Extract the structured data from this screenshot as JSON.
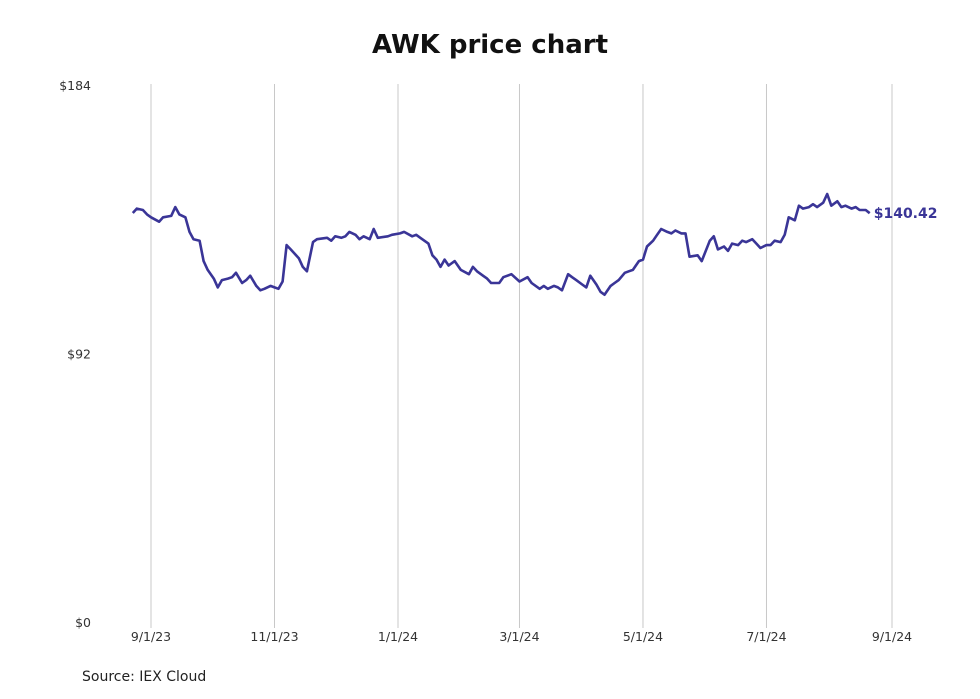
{
  "chart_data": {
    "type": "line",
    "title": "AWK price chart",
    "source": "Source: IEX Cloud",
    "xlabel": "",
    "ylabel": "",
    "x_ticks": [
      "9/1/23",
      "11/1/23",
      "1/1/24",
      "3/1/24",
      "5/1/24",
      "7/1/24",
      "9/1/24"
    ],
    "y_ticks": [
      "$0",
      "$92",
      "$184"
    ],
    "ylim": [
      0,
      184
    ],
    "xlim": [
      "2023-08-23",
      "2024-09-01"
    ],
    "grid": "vertical",
    "end_label": "$140.42",
    "line_color": "#3a3597",
    "series": [
      {
        "points": [
          [
            "2023-08-23",
            140.5
          ],
          [
            "2023-08-25",
            142.0
          ],
          [
            "2023-08-28",
            141.5
          ],
          [
            "2023-08-30",
            140.0
          ],
          [
            "2023-09-01",
            139.0
          ],
          [
            "2023-09-05",
            137.5
          ],
          [
            "2023-09-07",
            139.0
          ],
          [
            "2023-09-11",
            139.5
          ],
          [
            "2023-09-13",
            142.5
          ],
          [
            "2023-09-15",
            140.0
          ],
          [
            "2023-09-18",
            139.0
          ],
          [
            "2023-09-20",
            134.0
          ],
          [
            "2023-09-22",
            131.5
          ],
          [
            "2023-09-25",
            131.0
          ],
          [
            "2023-09-27",
            124.0
          ],
          [
            "2023-09-29",
            121.0
          ],
          [
            "2023-10-02",
            118.0
          ],
          [
            "2023-10-04",
            115.0
          ],
          [
            "2023-10-06",
            117.5
          ],
          [
            "2023-10-09",
            118.0
          ],
          [
            "2023-10-11",
            118.5
          ],
          [
            "2023-10-13",
            120.0
          ],
          [
            "2023-10-16",
            116.5
          ],
          [
            "2023-10-18",
            117.5
          ],
          [
            "2023-10-20",
            119.0
          ],
          [
            "2023-10-23",
            115.5
          ],
          [
            "2023-10-25",
            114.0
          ],
          [
            "2023-10-27",
            114.5
          ],
          [
            "2023-10-30",
            115.5
          ],
          [
            "2023-11-01",
            115.0
          ],
          [
            "2023-11-03",
            114.5
          ],
          [
            "2023-11-05",
            117.0
          ],
          [
            "2023-11-07",
            129.5
          ],
          [
            "2023-11-09",
            128.0
          ],
          [
            "2023-11-13",
            125.0
          ],
          [
            "2023-11-15",
            122.0
          ],
          [
            "2023-11-17",
            120.5
          ],
          [
            "2023-11-20",
            130.5
          ],
          [
            "2023-11-22",
            131.5
          ],
          [
            "2023-11-27",
            132.0
          ],
          [
            "2023-11-29",
            131.0
          ],
          [
            "2023-12-01",
            132.5
          ],
          [
            "2023-12-04",
            132.0
          ],
          [
            "2023-12-06",
            132.5
          ],
          [
            "2023-12-08",
            134.0
          ],
          [
            "2023-12-11",
            133.0
          ],
          [
            "2023-12-13",
            131.5
          ],
          [
            "2023-12-15",
            132.5
          ],
          [
            "2023-12-18",
            131.5
          ],
          [
            "2023-12-20",
            135.0
          ],
          [
            "2023-12-22",
            132.0
          ],
          [
            "2023-12-27",
            132.5
          ],
          [
            "2023-12-29",
            133.0
          ],
          [
            "2024-01-02",
            133.5
          ],
          [
            "2024-01-04",
            134.0
          ],
          [
            "2024-01-08",
            132.5
          ],
          [
            "2024-01-10",
            133.0
          ],
          [
            "2024-01-12",
            132.0
          ],
          [
            "2024-01-16",
            130.0
          ],
          [
            "2024-01-18",
            126.0
          ],
          [
            "2024-01-20",
            124.5
          ],
          [
            "2024-01-22",
            122.0
          ],
          [
            "2024-01-24",
            124.5
          ],
          [
            "2024-01-26",
            122.5
          ],
          [
            "2024-01-29",
            124.0
          ],
          [
            "2024-02-01",
            121.0
          ],
          [
            "2024-02-05",
            119.5
          ],
          [
            "2024-02-07",
            122.0
          ],
          [
            "2024-02-09",
            120.5
          ],
          [
            "2024-02-12",
            119.0
          ],
          [
            "2024-02-14",
            118.0
          ],
          [
            "2024-02-16",
            116.5
          ],
          [
            "2024-02-20",
            116.5
          ],
          [
            "2024-02-22",
            118.5
          ],
          [
            "2024-02-26",
            119.5
          ],
          [
            "2024-03-01",
            117.0
          ],
          [
            "2024-03-05",
            118.5
          ],
          [
            "2024-03-07",
            116.5
          ],
          [
            "2024-03-11",
            114.5
          ],
          [
            "2024-03-13",
            115.5
          ],
          [
            "2024-03-15",
            114.5
          ],
          [
            "2024-03-18",
            115.5
          ],
          [
            "2024-03-20",
            115.0
          ],
          [
            "2024-03-22",
            114.0
          ],
          [
            "2024-03-25",
            119.5
          ],
          [
            "2024-03-27",
            118.5
          ],
          [
            "2024-03-29",
            117.5
          ],
          [
            "2024-04-01",
            116.0
          ],
          [
            "2024-04-03",
            115.0
          ],
          [
            "2024-04-05",
            119.0
          ],
          [
            "2024-04-08",
            116.0
          ],
          [
            "2024-04-10",
            113.5
          ],
          [
            "2024-04-12",
            112.5
          ],
          [
            "2024-04-15",
            115.5
          ],
          [
            "2024-04-17",
            116.5
          ],
          [
            "2024-04-19",
            117.5
          ],
          [
            "2024-04-22",
            120.0
          ],
          [
            "2024-04-24",
            120.5
          ],
          [
            "2024-04-26",
            121.0
          ],
          [
            "2024-04-29",
            124.0
          ],
          [
            "2024-05-01",
            124.5
          ],
          [
            "2024-05-03",
            129.0
          ],
          [
            "2024-05-06",
            131.0
          ],
          [
            "2024-05-08",
            133.0
          ],
          [
            "2024-05-10",
            135.0
          ],
          [
            "2024-05-13",
            134.0
          ],
          [
            "2024-05-15",
            133.5
          ],
          [
            "2024-05-17",
            134.5
          ],
          [
            "2024-05-20",
            133.5
          ],
          [
            "2024-05-22",
            133.5
          ],
          [
            "2024-05-24",
            125.5
          ],
          [
            "2024-05-28",
            126.0
          ],
          [
            "2024-05-30",
            124.0
          ],
          [
            "2024-06-03",
            131.0
          ],
          [
            "2024-06-05",
            132.5
          ],
          [
            "2024-06-07",
            128.0
          ],
          [
            "2024-06-10",
            129.0
          ],
          [
            "2024-06-12",
            127.5
          ],
          [
            "2024-06-14",
            130.0
          ],
          [
            "2024-06-17",
            129.5
          ],
          [
            "2024-06-19",
            131.0
          ],
          [
            "2024-06-21",
            130.5
          ],
          [
            "2024-06-24",
            131.5
          ],
          [
            "2024-06-26",
            130.0
          ],
          [
            "2024-06-28",
            128.5
          ],
          [
            "2024-07-01",
            129.5
          ],
          [
            "2024-07-03",
            129.5
          ],
          [
            "2024-07-05",
            131.0
          ],
          [
            "2024-07-08",
            130.5
          ],
          [
            "2024-07-10",
            133.0
          ],
          [
            "2024-07-12",
            139.0
          ],
          [
            "2024-07-15",
            138.0
          ],
          [
            "2024-07-17",
            143.0
          ],
          [
            "2024-07-19",
            142.0
          ],
          [
            "2024-07-22",
            142.5
          ],
          [
            "2024-07-24",
            143.5
          ],
          [
            "2024-07-26",
            142.5
          ],
          [
            "2024-07-29",
            144.0
          ],
          [
            "2024-07-31",
            147.0
          ],
          [
            "2024-08-02",
            143.0
          ],
          [
            "2024-08-05",
            144.5
          ],
          [
            "2024-08-07",
            142.5
          ],
          [
            "2024-08-09",
            143.0
          ],
          [
            "2024-08-12",
            142.0
          ],
          [
            "2024-08-14",
            142.5
          ],
          [
            "2024-08-16",
            141.5
          ],
          [
            "2024-08-19",
            141.5
          ],
          [
            "2024-08-21",
            140.42
          ]
        ]
      }
    ]
  }
}
